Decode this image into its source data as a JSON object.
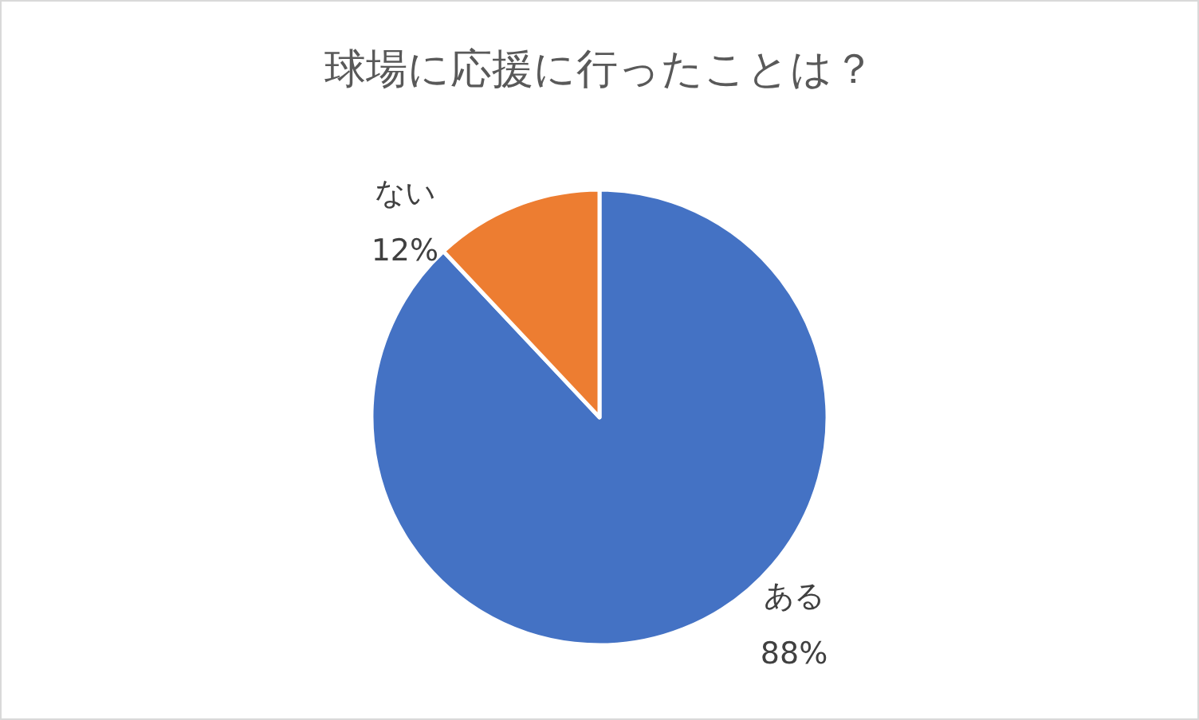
{
  "chart_data": {
    "type": "pie",
    "title": "球場に応援に行ったことは？",
    "categories": [
      "ある",
      "ない"
    ],
    "values": [
      88,
      12
    ],
    "colors": [
      "#4472c4",
      "#ed7d31"
    ],
    "value_labels": [
      "88%",
      "12%"
    ]
  }
}
